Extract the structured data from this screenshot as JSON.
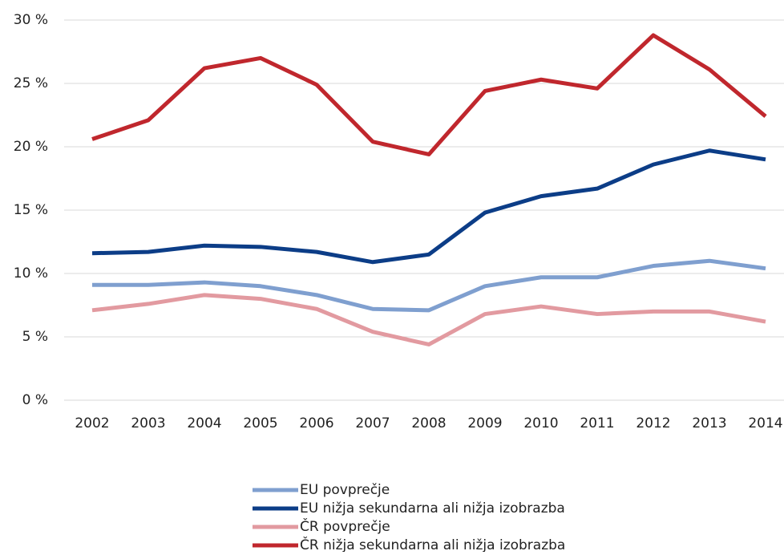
{
  "chart_data": {
    "type": "line",
    "categories": [
      "2002",
      "2003",
      "2004",
      "2005",
      "2006",
      "2007",
      "2008",
      "2009",
      "2010",
      "2011",
      "2012",
      "2013",
      "2014"
    ],
    "series": [
      {
        "name": "EU povprečje",
        "color": "#7f9fcf",
        "values": [
          9.1,
          9.1,
          9.3,
          9.0,
          8.3,
          7.2,
          7.1,
          9.0,
          9.7,
          9.7,
          10.6,
          11.0,
          10.4
        ]
      },
      {
        "name": "EU nižja sekundarna ali nižja izobrazba",
        "color": "#0c3d87",
        "values": [
          11.6,
          11.7,
          12.2,
          12.1,
          11.7,
          10.9,
          11.5,
          14.8,
          16.1,
          16.7,
          18.6,
          19.7,
          19.0
        ]
      },
      {
        "name": "ČR povprečje",
        "color": "#e29aa0",
        "values": [
          7.1,
          7.6,
          8.3,
          8.0,
          7.2,
          5.4,
          4.4,
          6.8,
          7.4,
          6.8,
          7.0,
          7.0,
          6.2
        ]
      },
      {
        "name": "ČR nižja sekundarna ali nižja izobrazba",
        "color": "#c0272d",
        "values": [
          20.6,
          22.1,
          26.2,
          27.0,
          24.9,
          20.4,
          19.4,
          24.4,
          25.3,
          24.6,
          28.8,
          26.1,
          22.4
        ]
      }
    ],
    "ylim": [
      0,
      30
    ],
    "yticks": [
      {
        "value": 0,
        "label": "0 %"
      },
      {
        "value": 5,
        "label": "5 %"
      },
      {
        "value": 10,
        "label": "10 %"
      },
      {
        "value": 15,
        "label": "15 %"
      },
      {
        "value": 20,
        "label": "20 %"
      },
      {
        "value": 25,
        "label": "25 %"
      },
      {
        "value": 30,
        "label": "30 %"
      }
    ],
    "grid": true
  }
}
